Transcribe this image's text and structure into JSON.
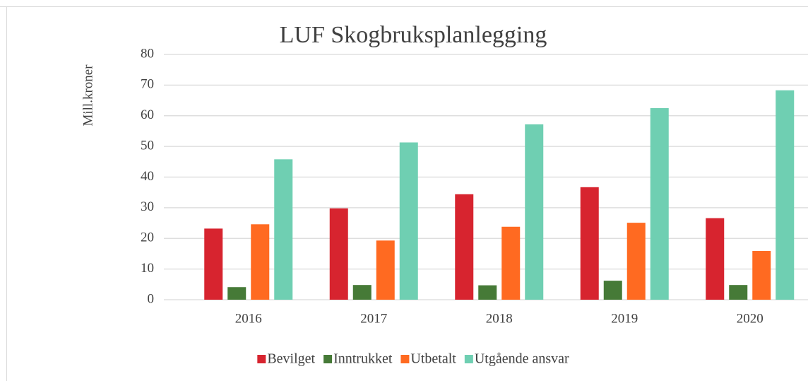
{
  "chart_data": {
    "type": "bar",
    "title": "LUF Skogbruksplanlegging",
    "y_label": "Mill.kroner",
    "categories": [
      "2016",
      "2017",
      "2018",
      "2019",
      "2020"
    ],
    "series": [
      {
        "name": "Bevilget",
        "color": "#d7242f",
        "values": [
          23.2,
          29.8,
          34.4,
          36.7,
          26.6
        ]
      },
      {
        "name": "Inntrukket",
        "color": "#467a37",
        "values": [
          4.1,
          4.8,
          4.7,
          6.2,
          4.8
        ]
      },
      {
        "name": "Utbetalt",
        "color": "#ff6a21",
        "values": [
          24.6,
          19.3,
          23.8,
          25.1,
          15.9
        ]
      },
      {
        "name": "Utgående ansvar",
        "color": "#6fcfb2",
        "values": [
          45.8,
          51.3,
          57.2,
          62.5,
          68.3
        ]
      }
    ],
    "ylim": [
      0,
      80
    ],
    "yticks": [
      0,
      10,
      20,
      30,
      40,
      50,
      60,
      70,
      80
    ],
    "grid": true,
    "legend": "bottom"
  }
}
